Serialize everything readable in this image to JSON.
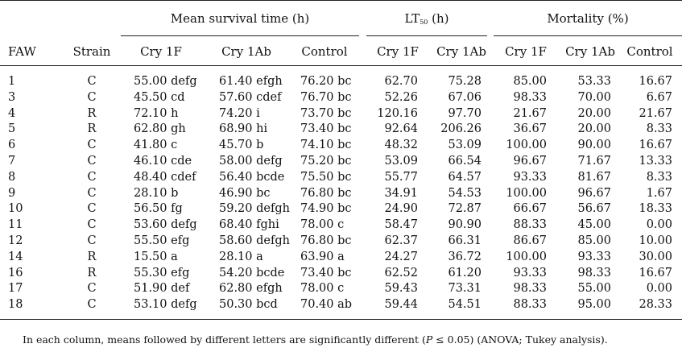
{
  "header": {
    "group_mst": "Mean survival time (h)",
    "group_lt50_main": "LT",
    "group_lt50_sub": "50",
    "group_lt50_unit": " (h)",
    "group_mortality": "Mortality (%)",
    "col_faw": "FAW",
    "col_strain": "Strain",
    "col_mst_cry1f": "Cry 1F",
    "col_mst_cry1ab": "Cry 1Ab",
    "col_mst_control": "Control",
    "col_lt_cry1f": "Cry 1F",
    "col_lt_cry1ab": "Cry 1Ab",
    "col_mort_cry1f": "Cry 1F",
    "col_mort_cry1ab": "Cry 1Ab",
    "col_mort_control": "Control"
  },
  "rows": [
    [
      "1",
      "C",
      "55.00 defg",
      "61.40 efgh",
      "76.20 bc",
      "62.70",
      "75.28",
      "85.00",
      "53.33",
      "16.67"
    ],
    [
      "3",
      "C",
      "45.50 cd",
      "57.60 cdef",
      "76.70 bc",
      "52.26",
      "67.06",
      "98.33",
      "70.00",
      "6.67"
    ],
    [
      "4",
      "R",
      "72.10 h",
      "74.20 i",
      "73.70 bc",
      "120.16",
      "97.70",
      "21.67",
      "20.00",
      "21.67"
    ],
    [
      "5",
      "R",
      "62.80 gh",
      "68.90 hi",
      "73.40 bc",
      "92.64",
      "206.26",
      "36.67",
      "20.00",
      "8.33"
    ],
    [
      "6",
      "C",
      "41.80 c",
      "45.70 b",
      "74.10 bc",
      "48.32",
      "53.09",
      "100.00",
      "90.00",
      "16.67"
    ],
    [
      "7",
      "C",
      "46.10 cde",
      "58.00 defg",
      "75.20 bc",
      "53.09",
      "66.54",
      "96.67",
      "71.67",
      "13.33"
    ],
    [
      "8",
      "C",
      "48.40 cdef",
      "56.40 bcde",
      "75.50 bc",
      "55.77",
      "64.57",
      "93.33",
      "81.67",
      "8.33"
    ],
    [
      "9",
      "C",
      "28.10 b",
      "46.90 bc",
      "76.80 bc",
      "34.91",
      "54.53",
      "100.00",
      "96.67",
      "1.67"
    ],
    [
      "10",
      "C",
      "56.50 fg",
      "59.20 defgh",
      "74.90 bc",
      "24.90",
      "72.87",
      "66.67",
      "56.67",
      "18.33"
    ],
    [
      "11",
      "C",
      "53.60 defg",
      "68.40 fghi",
      "78.00 c",
      "58.47",
      "90.90",
      "88.33",
      "45.00",
      "0.00"
    ],
    [
      "12",
      "C",
      "55.50 efg",
      "58.60 defgh",
      "76.80 bc",
      "62.37",
      "66.31",
      "86.67",
      "85.00",
      "10.00"
    ],
    [
      "14",
      "R",
      "15.50 a",
      "28.10 a",
      "63.90 a",
      "24.27",
      "36.72",
      "100.00",
      "93.33",
      "30.00"
    ],
    [
      "16",
      "R",
      "55.30 efg",
      "54.20 bcde",
      "73.40 bc",
      "62.52",
      "61.20",
      "93.33",
      "98.33",
      "16.67"
    ],
    [
      "17",
      "C",
      "51.90 def",
      "62.80 efgh",
      "78.00 c",
      "59.43",
      "73.31",
      "98.33",
      "55.00",
      "0.00"
    ],
    [
      "18",
      "C",
      "53.10 defg",
      "50.30 bcd",
      "70.40 ab",
      "59.44",
      "54.51",
      "88.33",
      "95.00",
      "28.33"
    ]
  ],
  "footnote": {
    "before": "In each column, means followed by different letters are significantly different (",
    "p_symbol": "P",
    "after": " ≤ 0.05) (ANOVA; Tukey analysis)."
  }
}
